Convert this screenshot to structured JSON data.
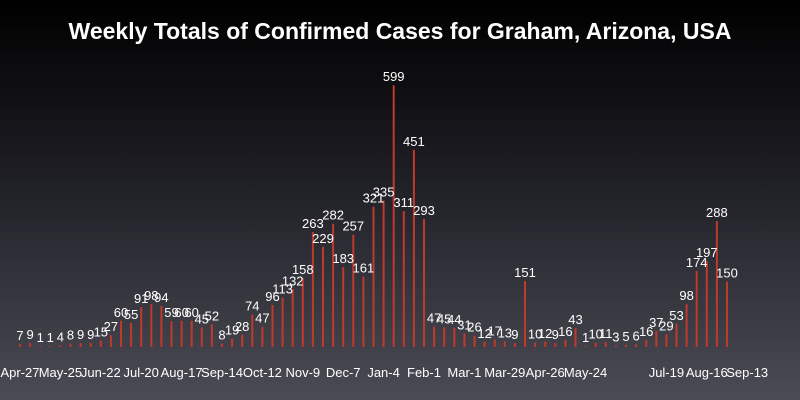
{
  "chart_data": {
    "type": "bar",
    "title": "Weekly Totals of Confirmed Cases for Graham, Arizona, USA",
    "xlabel": "",
    "ylabel": "",
    "grid": false,
    "bar_color": "#c0392b",
    "ylim": [
      0,
      620
    ],
    "categories": [
      "Apr-27",
      "",
      "",
      "",
      "May-25",
      "",
      "",
      "",
      "Jun-22",
      "",
      "",
      "",
      "Jul-20",
      "",
      "",
      "",
      "Aug-17",
      "",
      "",
      "",
      "Sep-14",
      "",
      "",
      "",
      "Oct-12",
      "",
      "",
      "",
      "Nov-9",
      "",
      "",
      "",
      "Dec-7",
      "",
      "",
      "",
      "Jan-4",
      "",
      "",
      "",
      "Feb-1",
      "",
      "",
      "",
      "Mar-1",
      "",
      "",
      "",
      "Mar-29",
      "",
      "",
      "",
      "Apr-26",
      "",
      "",
      "",
      "May-24",
      "",
      "",
      "",
      "",
      "",
      "",
      "",
      "Jul-19",
      "",
      "",
      "",
      "Aug-16",
      "",
      "",
      "",
      "Sep-13",
      ""
    ],
    "values": [
      7,
      9,
      1,
      1,
      4,
      8,
      9,
      9,
      15,
      27,
      60,
      55,
      91,
      98,
      94,
      59,
      60,
      60,
      45,
      52,
      8,
      19,
      28,
      74,
      47,
      96,
      113,
      132,
      158,
      263,
      229,
      282,
      183,
      257,
      161,
      321,
      335,
      599,
      311,
      451,
      293,
      47,
      45,
      44,
      31,
      26,
      12,
      17,
      13,
      9,
      151,
      10,
      12,
      9,
      16,
      43,
      1,
      10,
      11,
      3,
      5,
      6,
      16,
      37,
      29,
      53,
      98,
      174,
      197,
      288,
      150
    ],
    "labels": [
      "7",
      "9",
      "1",
      "1",
      "4",
      "8",
      "9",
      "9",
      "15",
      "27",
      "60",
      "55",
      "91",
      "98",
      "94",
      "59",
      "60",
      "60",
      "45",
      "52",
      "8",
      "19",
      "28",
      "74",
      "47",
      "96",
      "113",
      "132",
      "158",
      "263",
      "229",
      "282",
      "183",
      "257",
      "161",
      "321",
      "335",
      "599",
      "311",
      "451",
      "293",
      "47",
      "45",
      "44",
      "31",
      "26",
      "12",
      "17",
      "13",
      "9",
      "151",
      "10",
      "12",
      "9",
      "16",
      "43",
      "1",
      "10",
      "11",
      "3",
      "5",
      "6",
      "16",
      "37",
      "29",
      "53",
      "98",
      "174",
      "197",
      "288",
      "150"
    ]
  }
}
